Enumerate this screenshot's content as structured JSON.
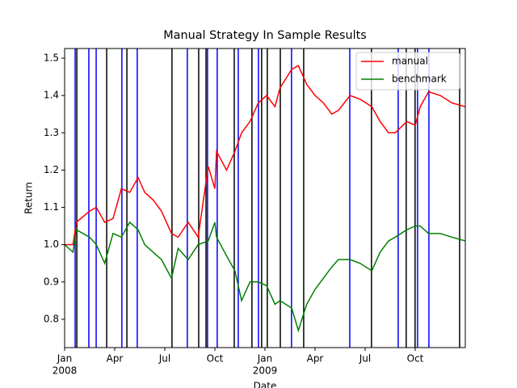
{
  "chart_data": {
    "type": "line",
    "title": "Manual Strategy In Sample Results",
    "xlabel": "Date",
    "ylabel": "Return",
    "x": [
      0,
      0.5,
      0.7,
      1.5,
      1.9,
      2.4,
      2.9,
      3.4,
      3.9,
      4.4,
      4.8,
      5.3,
      5.8,
      6.4,
      6.8,
      7.4,
      8.0,
      8.6,
      9.0,
      9.1,
      9.7,
      10.2,
      10.6,
      11.1,
      11.6,
      12.1,
      12.6,
      12.9,
      13.6,
      14.0,
      14.5,
      15.0,
      15.5,
      16.0,
      16.4,
      17.1,
      17.7,
      18.4,
      18.9,
      19.4,
      19.8,
      20.5,
      21.0,
      21.3,
      21.8,
      22.5,
      23.2,
      24.0
    ],
    "series": [
      {
        "name": "manual",
        "color": "#ff0000",
        "values": [
          1.0,
          1.0,
          1.06,
          1.09,
          1.1,
          1.06,
          1.07,
          1.15,
          1.14,
          1.18,
          1.14,
          1.12,
          1.09,
          1.03,
          1.02,
          1.06,
          1.02,
          1.21,
          1.15,
          1.25,
          1.2,
          1.25,
          1.3,
          1.33,
          1.38,
          1.4,
          1.37,
          1.42,
          1.47,
          1.48,
          1.43,
          1.4,
          1.38,
          1.35,
          1.36,
          1.4,
          1.39,
          1.37,
          1.33,
          1.3,
          1.3,
          1.33,
          1.32,
          1.37,
          1.41,
          1.4,
          1.38,
          1.37
        ]
      },
      {
        "name": "benchmark",
        "color": "#008000",
        "values": [
          1.0,
          0.98,
          1.04,
          1.02,
          1.0,
          0.95,
          1.03,
          1.02,
          1.06,
          1.04,
          1.0,
          0.98,
          0.96,
          0.91,
          0.99,
          0.96,
          1.0,
          1.01,
          1.06,
          1.02,
          0.97,
          0.93,
          0.85,
          0.9,
          0.9,
          0.89,
          0.84,
          0.85,
          0.83,
          0.77,
          0.84,
          0.88,
          0.91,
          0.94,
          0.96,
          0.96,
          0.95,
          0.93,
          0.98,
          1.01,
          1.02,
          1.04,
          1.05,
          1.05,
          1.03,
          1.03,
          1.02,
          1.01
        ]
      }
    ],
    "vlines": [
      {
        "color": "#0000ff",
        "x": [
          0.63,
          1.45,
          1.89,
          3.43,
          4.35,
          7.35,
          8.56,
          9.14,
          10.4,
          11.61,
          13.59,
          17.08,
          19.98,
          21.14,
          21.82
        ]
      },
      {
        "color": "#000000",
        "x": [
          0.73,
          2.52,
          3.73,
          6.43,
          8.03,
          8.47,
          10.16,
          11.22,
          11.8,
          12.14,
          12.92,
          14.32,
          18.38,
          20.46,
          20.99,
          23.66
        ]
      }
    ],
    "xlim": [
      0,
      24
    ],
    "xticks": [
      {
        "value": 0,
        "label": "Jan"
      },
      {
        "value": 3,
        "label": "Apr"
      },
      {
        "value": 6,
        "label": "Jul"
      },
      {
        "value": 9,
        "label": "Oct"
      },
      {
        "value": 12,
        "label": "Jan"
      },
      {
        "value": 15,
        "label": "Apr"
      },
      {
        "value": 18,
        "label": "Jul"
      },
      {
        "value": 21,
        "label": "Oct"
      }
    ],
    "year_labels": [
      {
        "value": 0,
        "label": "2008"
      },
      {
        "value": 12,
        "label": "2009"
      }
    ],
    "ylim": [
      0.724,
      1.526
    ],
    "yticks": [
      0.8,
      0.9,
      {
        "value": 1,
        "label": "1.0"
      },
      1.1,
      1.2,
      1.3,
      1.4,
      1.5
    ],
    "legend": "upper right"
  }
}
